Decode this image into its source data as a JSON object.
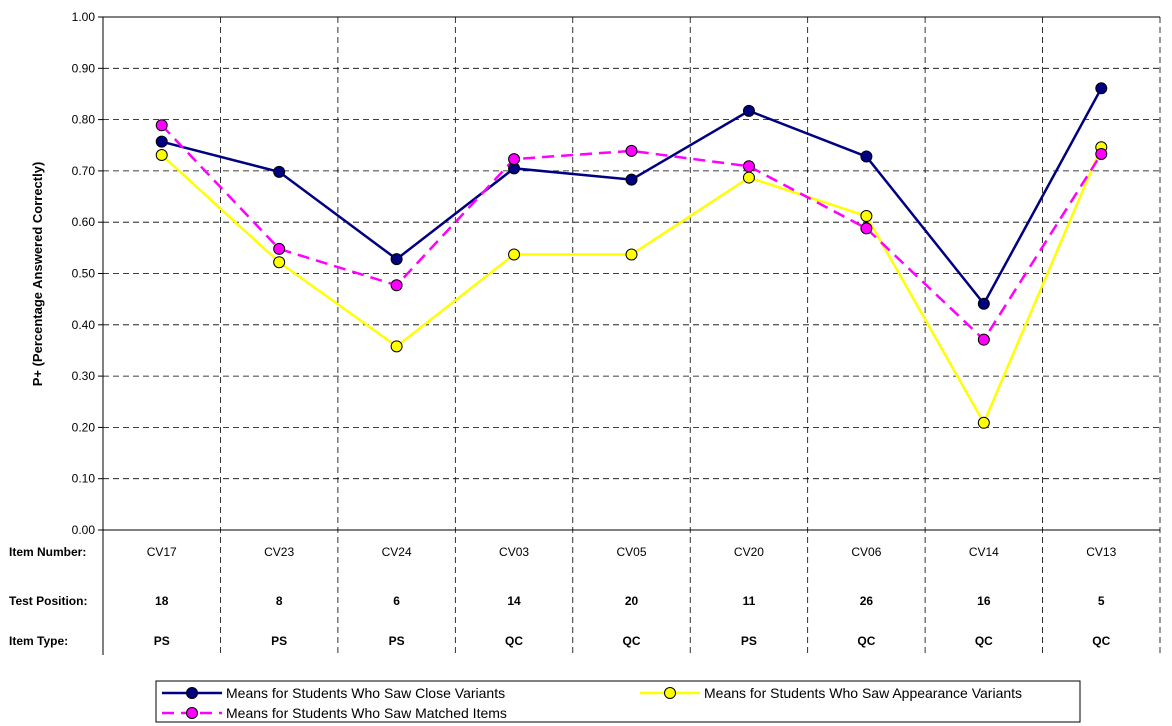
{
  "chart_data": {
    "type": "line",
    "ylabel": "P+ (Percentage Answered Correctly)",
    "ylim": [
      0,
      1
    ],
    "yticks": [
      0,
      0.1,
      0.2,
      0.3,
      0.4,
      0.5,
      0.6,
      0.7,
      0.8,
      0.9,
      1.0
    ],
    "ytick_labels": [
      "0.00",
      "0.10",
      "0.20",
      "0.30",
      "0.40",
      "0.50",
      "0.60",
      "0.70",
      "0.80",
      "0.90",
      "1.00"
    ],
    "grid": true,
    "legend_position": "bottom",
    "categories": [
      "CV17",
      "CV23",
      "CV24",
      "CV03",
      "CV05",
      "CV20",
      "CV06",
      "CV14",
      "CV13"
    ],
    "table_rows": [
      {
        "label": "Item Number:",
        "values": [
          "CV17",
          "CV23",
          "CV24",
          "CV03",
          "CV05",
          "CV20",
          "CV06",
          "CV14",
          "CV13"
        ],
        "bold": false
      },
      {
        "label": "Test Position:",
        "values": [
          "18",
          "8",
          "6",
          "14",
          "20",
          "11",
          "26",
          "16",
          "5"
        ],
        "bold": true
      },
      {
        "label": "Item Type:",
        "values": [
          "PS",
          "PS",
          "PS",
          "QC",
          "QC",
          "PS",
          "QC",
          "QC",
          "QC"
        ],
        "bold": true
      }
    ],
    "series": [
      {
        "name": "Means for Students Who Saw Close Variants",
        "color": "#000080",
        "marker_fill": "#000080",
        "dash": "solid",
        "values": [
          0.757,
          0.698,
          0.528,
          0.705,
          0.683,
          0.817,
          0.728,
          0.441,
          0.861
        ]
      },
      {
        "name": "Means for Students Who Saw Appearance Variants",
        "color": "#ffff00",
        "marker_fill": "#ffff00",
        "dash": "solid",
        "values": [
          0.731,
          0.522,
          0.358,
          0.537,
          0.537,
          0.687,
          0.612,
          0.209,
          0.746
        ]
      },
      {
        "name": "Means for Students Who Saw Matched Items",
        "color": "#ff00ff",
        "marker_fill": "#ff00ff",
        "dash": "dashed",
        "values": [
          0.789,
          0.548,
          0.477,
          0.723,
          0.739,
          0.709,
          0.588,
          0.371,
          0.733
        ]
      }
    ]
  }
}
